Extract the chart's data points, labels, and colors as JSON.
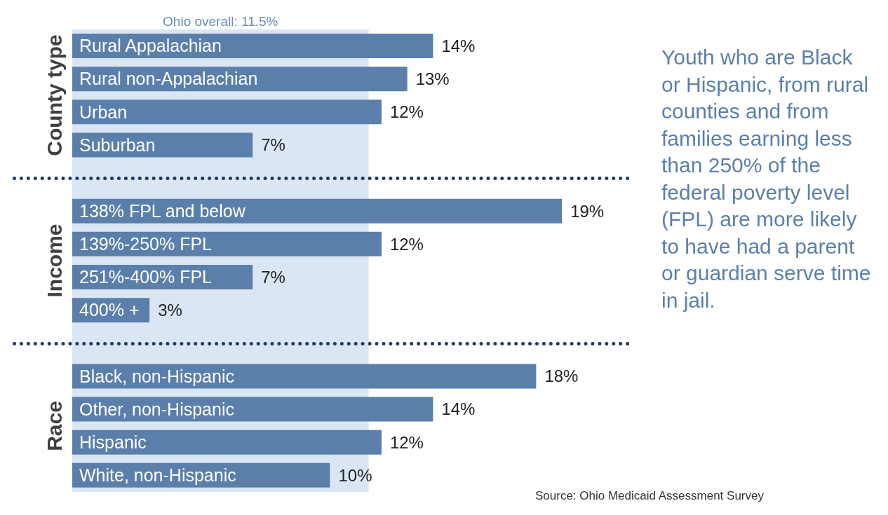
{
  "chart_data": {
    "type": "bar",
    "orientation": "horizontal",
    "categories": [
      "Rural Appalachian",
      "Rural non-Appalachian",
      "Urban",
      "Suburban",
      null,
      "138% FPL and below",
      "139%-250% FPL",
      "251%-400% FPL",
      "400% +",
      null,
      "Black, non-Hispanic",
      "Other, non-Hispanic",
      "Hispanic",
      "White, non-Hispanic"
    ],
    "values": [
      14,
      13,
      12,
      7,
      null,
      19,
      12,
      7,
      3,
      null,
      18,
      14,
      12,
      10
    ],
    "value_labels": [
      "14%",
      "13%",
      "12%",
      "7%",
      null,
      "19%",
      "12%",
      "7%",
      "3%",
      null,
      "18%",
      "14%",
      "12%",
      "10%"
    ],
    "color": "#5b7fab",
    "xlim": [
      0,
      21.5
    ],
    "tick_labels": false,
    "bands": [
      {
        "axis": "x",
        "from": 0,
        "to": 11.5,
        "label": "Ohio overall: 11.5%",
        "color": "#dae6f4"
      }
    ],
    "annotations": [
      "County type",
      "Income",
      "Race",
      "Youth who are Black or Hispanic, from rural counties and from families earning less than 250% of the federal poverty level (FPL) are more likely to have had a parent or guardian serve time in jail.",
      "Source: Ohio Medicaid Assessment Survey"
    ]
  }
}
